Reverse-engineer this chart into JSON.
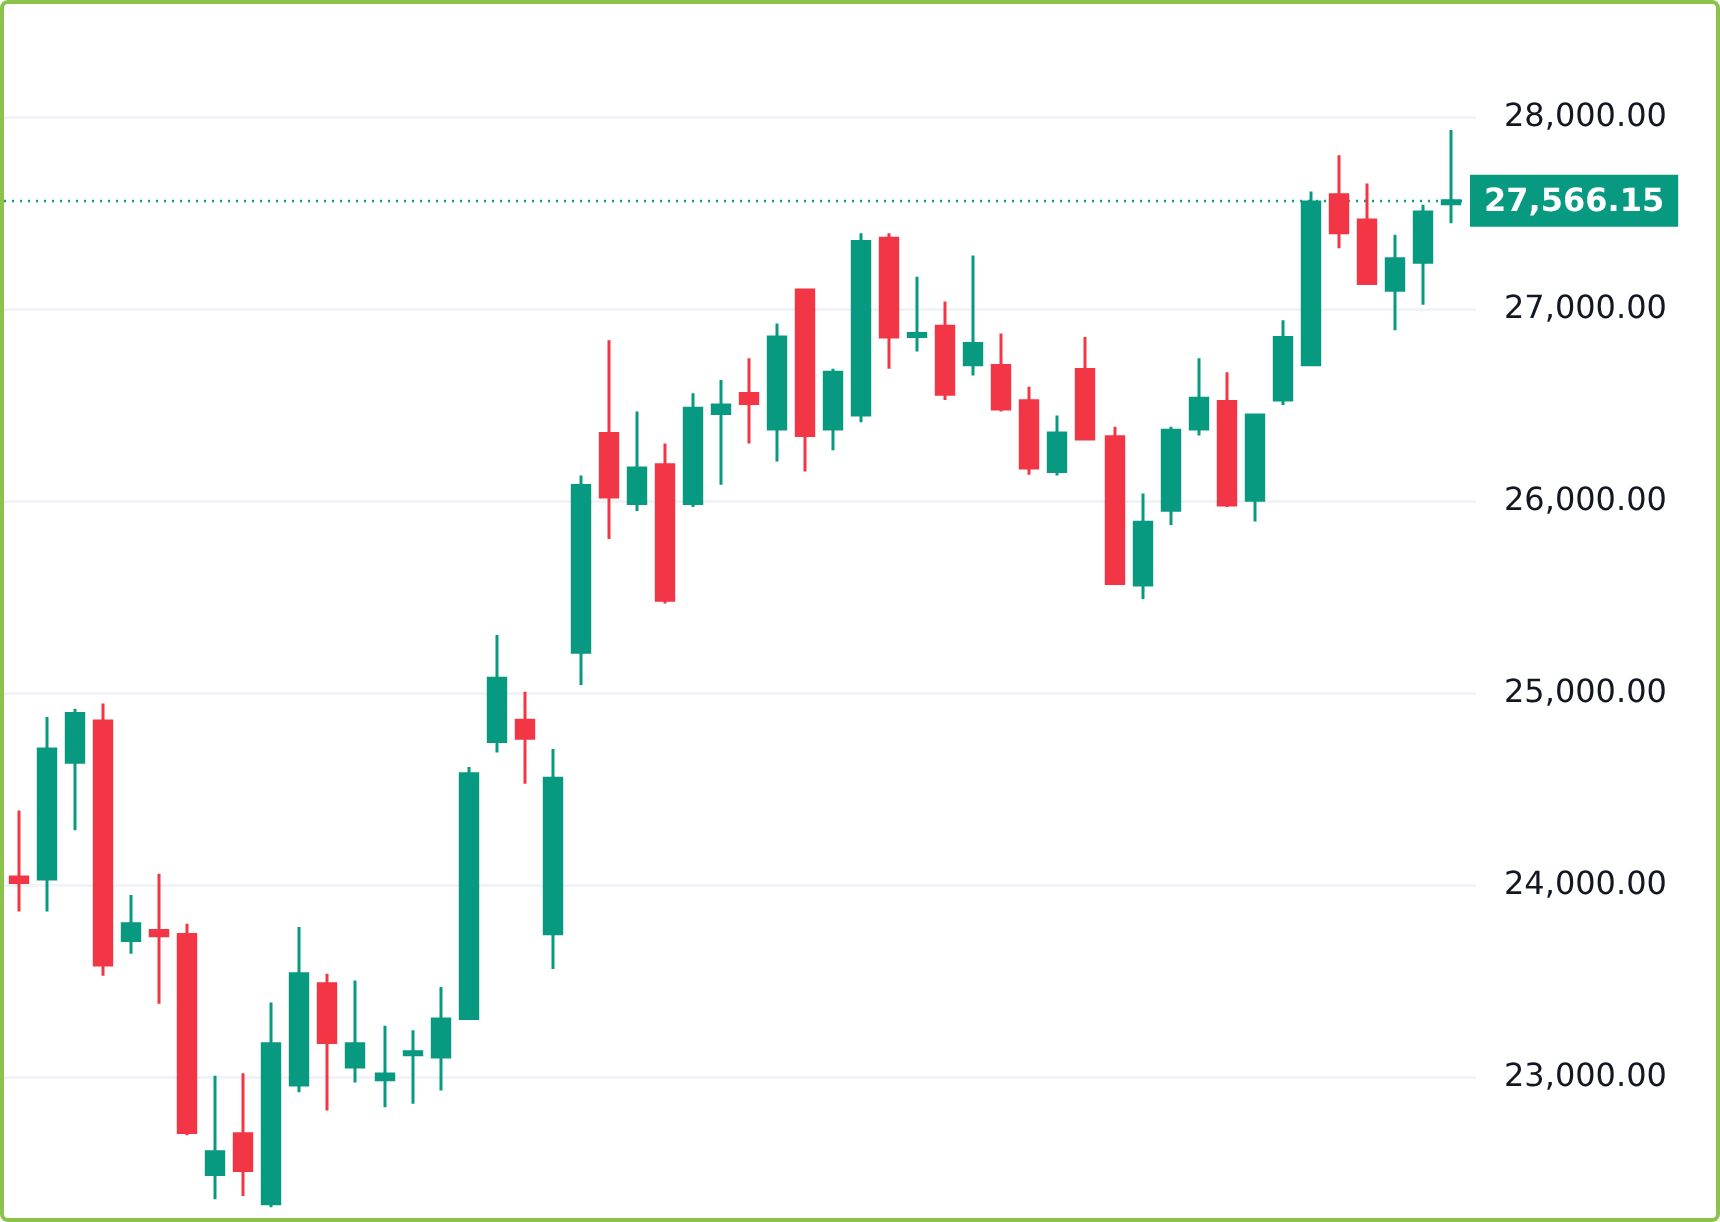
{
  "chart_data": {
    "type": "candlestick",
    "categories": [
      null,
      null,
      null,
      null,
      null,
      null,
      null,
      null,
      null,
      null,
      null,
      null,
      null,
      null,
      null,
      null,
      null,
      null,
      null,
      null,
      null,
      null,
      null,
      null,
      null,
      null,
      null,
      null,
      null,
      null,
      null,
      null,
      null,
      null,
      null,
      null,
      null,
      null,
      null,
      null,
      null,
      null,
      null,
      null,
      null,
      null,
      null,
      null,
      null,
      null,
      null,
      null
    ],
    "ohlc": [
      [
        24045,
        24392,
        23865,
        24017
      ],
      [
        24035,
        24878,
        23865,
        24712
      ],
      [
        24642,
        24920,
        24288,
        24896
      ],
      [
        24858,
        24948,
        23531,
        23587
      ],
      [
        23715,
        23951,
        23646,
        23802
      ],
      [
        23767,
        24062,
        23385,
        23740
      ],
      [
        23746,
        23802,
        22701,
        22715
      ],
      [
        22497,
        23010,
        22368,
        22615
      ],
      [
        22708,
        23024,
        22385,
        22517
      ],
      [
        22344,
        23392,
        22326,
        23177
      ],
      [
        22962,
        23785,
        22924,
        23542
      ],
      [
        23490,
        23542,
        22830,
        23184
      ],
      [
        23056,
        23507,
        22976,
        23177
      ],
      [
        22990,
        23271,
        22847,
        23020
      ],
      [
        23120,
        23247,
        22865,
        23135
      ],
      [
        23108,
        23472,
        22934,
        23306
      ],
      [
        23309,
        24618,
        23309,
        24583
      ],
      [
        24750,
        25305,
        24694,
        25080
      ],
      [
        24861,
        25010,
        24531,
        24767
      ],
      [
        23750,
        24712,
        23566,
        24559
      ],
      [
        25215,
        26135,
        25045,
        26083
      ],
      [
        26354,
        26840,
        25805,
        26024
      ],
      [
        25989,
        26469,
        25951,
        26174
      ],
      [
        26191,
        26302,
        25469,
        25486
      ],
      [
        25989,
        26563,
        25972,
        26486
      ],
      [
        26458,
        26632,
        26087,
        26503
      ],
      [
        26562,
        26746,
        26302,
        26510
      ],
      [
        26378,
        26927,
        26208,
        26857
      ],
      [
        27101,
        27101,
        26156,
        26344
      ],
      [
        26378,
        26691,
        26267,
        26673
      ],
      [
        26451,
        27396,
        26413,
        27354
      ],
      [
        27371,
        27396,
        26691,
        26857
      ],
      [
        26860,
        27170,
        26781,
        26875
      ],
      [
        26913,
        27041,
        26528,
        26559
      ],
      [
        26712,
        27281,
        26656,
        26823
      ],
      [
        26708,
        26875,
        26468,
        26482
      ],
      [
        26524,
        26597,
        26139,
        26174
      ],
      [
        26156,
        26448,
        26135,
        26357
      ],
      [
        26687,
        26857,
        26326,
        26326
      ],
      [
        26337,
        26389,
        25573,
        25573
      ],
      [
        25566,
        26042,
        25493,
        25892
      ],
      [
        25955,
        26389,
        25878,
        26371
      ],
      [
        26378,
        26746,
        26344,
        26538
      ],
      [
        26521,
        26673,
        25972,
        25982
      ],
      [
        26007,
        26451,
        25896,
        26451
      ],
      [
        26528,
        26944,
        26503,
        26854
      ],
      [
        26712,
        27614,
        26712,
        27559
      ],
      [
        27597,
        27802,
        27319,
        27399
      ],
      [
        27465,
        27656,
        27135,
        27135
      ],
      [
        27100,
        27389,
        26892,
        27264
      ],
      [
        27246,
        27545,
        27024,
        27507
      ],
      [
        27560,
        27934,
        27448,
        27566.15
      ]
    ],
    "colors": [
      "#f23645",
      "#089981",
      "#089981",
      "#f23645",
      "#089981",
      "#f23645",
      "#f23645",
      "#089981",
      "#f23645",
      "#089981",
      "#089981",
      "#f23645",
      "#089981",
      "#089981",
      "#089981",
      "#089981",
      "#089981",
      "#089981",
      "#f23645",
      "#089981",
      "#089981",
      "#f23645",
      "#089981",
      "#f23645",
      "#089981",
      "#089981",
      "#f23645",
      "#089981",
      "#f23645",
      "#089981",
      "#089981",
      "#f23645",
      "#089981",
      "#f23645",
      "#089981",
      "#f23645",
      "#f23645",
      "#089981",
      "#f23645",
      "#f23645",
      "#089981",
      "#089981",
      "#089981",
      "#f23645",
      "#089981",
      "#089981",
      "#089981",
      "#f23645",
      "#f23645",
      "#089981",
      "#089981",
      "#089981"
    ],
    "ylim": [
      22270,
      28590
    ],
    "yticks": [
      {
        "value": 23000,
        "label": "23,000.00"
      },
      {
        "value": 24000,
        "label": "24,000.00"
      },
      {
        "value": 25000,
        "label": "25,000.00"
      },
      {
        "value": 26000,
        "label": "26,000.00"
      },
      {
        "value": 27000,
        "label": "27,000.00"
      },
      {
        "value": 28000,
        "label": "28,000.00"
      }
    ],
    "ref_lines": [
      {
        "axis": "y",
        "value": 27566.15,
        "label": "27,566.15",
        "color": "#089981",
        "line_style": "dotted"
      }
    ],
    "grid": "y",
    "tick_labels": "y"
  }
}
